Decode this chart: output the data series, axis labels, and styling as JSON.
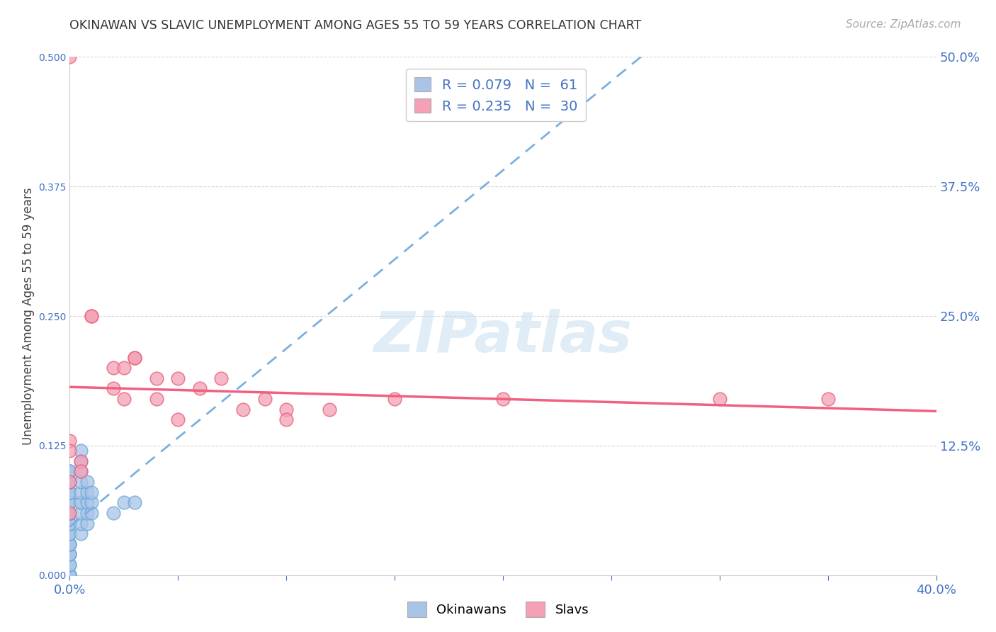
{
  "title": "OKINAWAN VS SLAVIC UNEMPLOYMENT AMONG AGES 55 TO 59 YEARS CORRELATION CHART",
  "source": "Source: ZipAtlas.com",
  "ylabel_label": "Unemployment Among Ages 55 to 59 years",
  "xlim": [
    0.0,
    0.4
  ],
  "ylim": [
    0.0,
    0.5
  ],
  "xticks": [
    0.0,
    0.05,
    0.1,
    0.15,
    0.2,
    0.25,
    0.3,
    0.35,
    0.4
  ],
  "xtick_labels": [
    "0.0%",
    "",
    "",
    "",
    "",
    "",
    "",
    "",
    "40.0%"
  ],
  "yticks": [
    0.0,
    0.125,
    0.25,
    0.375,
    0.5
  ],
  "ytick_labels": [
    "",
    "12.5%",
    "25.0%",
    "37.5%",
    "50.0%"
  ],
  "background_color": "#ffffff",
  "grid_color": "#d8d8d8",
  "okinawan_color": "#aac4e8",
  "slavic_color": "#f4a0b5",
  "okinawan_edge_color": "#6aaad4",
  "slavic_edge_color": "#e8607a",
  "okinawan_line_color": "#7ab0e0",
  "slavic_line_color": "#f06080",
  "legend_R_okinawan": "0.079",
  "legend_N_okinawan": "61",
  "legend_R_slavic": "0.235",
  "legend_N_slavic": "30",
  "watermark": "ZIPatlas",
  "okinawan_x": [
    0.0,
    0.0,
    0.0,
    0.0,
    0.0,
    0.0,
    0.0,
    0.0,
    0.0,
    0.0,
    0.0,
    0.0,
    0.0,
    0.0,
    0.0,
    0.0,
    0.0,
    0.0,
    0.0,
    0.0,
    0.0,
    0.0,
    0.0,
    0.0,
    0.0,
    0.0,
    0.0,
    0.0,
    0.0,
    0.0,
    0.0,
    0.0,
    0.0,
    0.0,
    0.0,
    0.0,
    0.0,
    0.0,
    0.0,
    0.0,
    0.005,
    0.005,
    0.005,
    0.005,
    0.005,
    0.005,
    0.005,
    0.005,
    0.005,
    0.005,
    0.008,
    0.008,
    0.008,
    0.008,
    0.008,
    0.01,
    0.01,
    0.01,
    0.02,
    0.025,
    0.03
  ],
  "okinawan_y": [
    0.0,
    0.0,
    0.0,
    0.0,
    0.0,
    0.0,
    0.0,
    0.0,
    0.0,
    0.0,
    0.01,
    0.01,
    0.02,
    0.02,
    0.02,
    0.03,
    0.03,
    0.03,
    0.03,
    0.04,
    0.04,
    0.04,
    0.05,
    0.05,
    0.05,
    0.05,
    0.06,
    0.06,
    0.06,
    0.07,
    0.07,
    0.07,
    0.08,
    0.08,
    0.08,
    0.09,
    0.09,
    0.1,
    0.1,
    0.1,
    0.04,
    0.05,
    0.06,
    0.07,
    0.07,
    0.08,
    0.09,
    0.1,
    0.11,
    0.12,
    0.05,
    0.06,
    0.07,
    0.08,
    0.09,
    0.06,
    0.07,
    0.08,
    0.06,
    0.07,
    0.07
  ],
  "slavic_x": [
    0.0,
    0.0,
    0.0,
    0.0,
    0.005,
    0.005,
    0.01,
    0.01,
    0.02,
    0.02,
    0.025,
    0.025,
    0.03,
    0.03,
    0.04,
    0.04,
    0.05,
    0.05,
    0.06,
    0.07,
    0.08,
    0.09,
    0.1,
    0.1,
    0.12,
    0.15,
    0.2,
    0.3,
    0.35,
    0.0
  ],
  "slavic_y": [
    0.5,
    0.13,
    0.09,
    0.06,
    0.11,
    0.1,
    0.25,
    0.25,
    0.2,
    0.18,
    0.2,
    0.17,
    0.21,
    0.21,
    0.19,
    0.17,
    0.19,
    0.15,
    0.18,
    0.19,
    0.16,
    0.17,
    0.16,
    0.15,
    0.16,
    0.17,
    0.17,
    0.17,
    0.17,
    0.12
  ]
}
